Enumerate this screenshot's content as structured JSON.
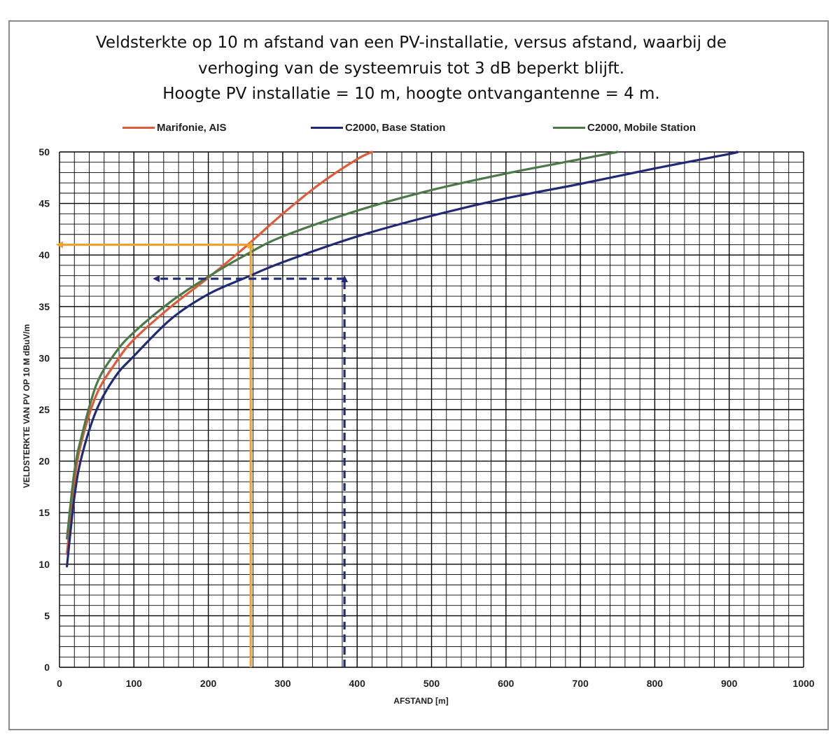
{
  "chart_data": {
    "type": "line",
    "title_lines": [
      "Veldsterkte op 10 m afstand van een PV-installatie, versus afstand, waarbij de",
      "verhoging van de systeemruis tot 3 dB beperkt blijft.",
      "Hoogte PV installatie = 10 m,  hoogte ontvangantenne = 4 m."
    ],
    "xlabel": "AFSTAND  [m]",
    "ylabel": "VELDSTERKTE  VAN  PV  OP 10 M dBuV/m",
    "xlim": [
      0,
      1000
    ],
    "ylim": [
      0,
      50
    ],
    "x_ticks": [
      0,
      100,
      200,
      300,
      400,
      500,
      600,
      700,
      800,
      900,
      1000
    ],
    "y_ticks": [
      0,
      5,
      10,
      15,
      20,
      25,
      30,
      35,
      40,
      45,
      50
    ],
    "x_tick_labels": [
      "0",
      "100",
      "200",
      "300",
      "400",
      "500",
      "600",
      "700",
      "800",
      "900",
      "1000"
    ],
    "y_tick_labels": [
      "0",
      "5",
      "10",
      "15",
      "20",
      "25",
      "30",
      "35",
      "40",
      "45",
      "50"
    ],
    "x_minor_step": 20,
    "y_minor_step": 1,
    "grid": true,
    "legend_position": "top",
    "series": [
      {
        "name": "Marifonie, AIS",
        "color": "#e05a38",
        "x": [
          10,
          20,
          30,
          50,
          75,
          100,
          150,
          200,
          250,
          300,
          350,
          400,
          420
        ],
        "y": [
          11,
          18,
          22,
          26.5,
          29.5,
          31.8,
          35,
          37.8,
          40.8,
          44,
          46.9,
          49.3,
          50
        ]
      },
      {
        "name": "C2000, Base Station",
        "color": "#1f2a78",
        "x": [
          10,
          20,
          30,
          50,
          75,
          100,
          150,
          200,
          250,
          300,
          400,
          500,
          600,
          700,
          800,
          900,
          910
        ],
        "y": [
          9.8,
          16.5,
          20.5,
          25,
          28.2,
          30.2,
          33.8,
          36.2,
          37.8,
          39.3,
          41.8,
          43.8,
          45.5,
          46.9,
          48.4,
          49.8,
          50
        ]
      },
      {
        "name": "C2000, Mobile Station",
        "color": "#4a7a46",
        "x": [
          10,
          20,
          30,
          50,
          75,
          100,
          150,
          200,
          250,
          300,
          400,
          500,
          600,
          700,
          750
        ],
        "y": [
          12.5,
          19,
          22.5,
          27.5,
          30.5,
          32.5,
          35.5,
          37.9,
          40,
          41.8,
          44.3,
          46.3,
          47.9,
          49.3,
          50
        ]
      }
    ],
    "annotations": [
      {
        "style": "solid",
        "color": "#f0a32a",
        "x_from": 257,
        "y_from": 0,
        "x_to": 257,
        "y_to": 41,
        "arrow_end": true
      },
      {
        "style": "solid",
        "color": "#f0a32a",
        "x_from": 257,
        "y_from": 41,
        "x_to": 0,
        "y_to": 41,
        "arrow_end": true
      },
      {
        "style": "dashed",
        "color": "#1f2a78",
        "x_from": 383,
        "y_from": 0,
        "x_to": 383,
        "y_to": 37.7,
        "arrow_end": true
      },
      {
        "style": "dashed",
        "color": "#1f2a78",
        "x_from": 383,
        "y_from": 37.7,
        "x_to": 130,
        "y_to": 37.7,
        "arrow_end": true
      }
    ]
  }
}
